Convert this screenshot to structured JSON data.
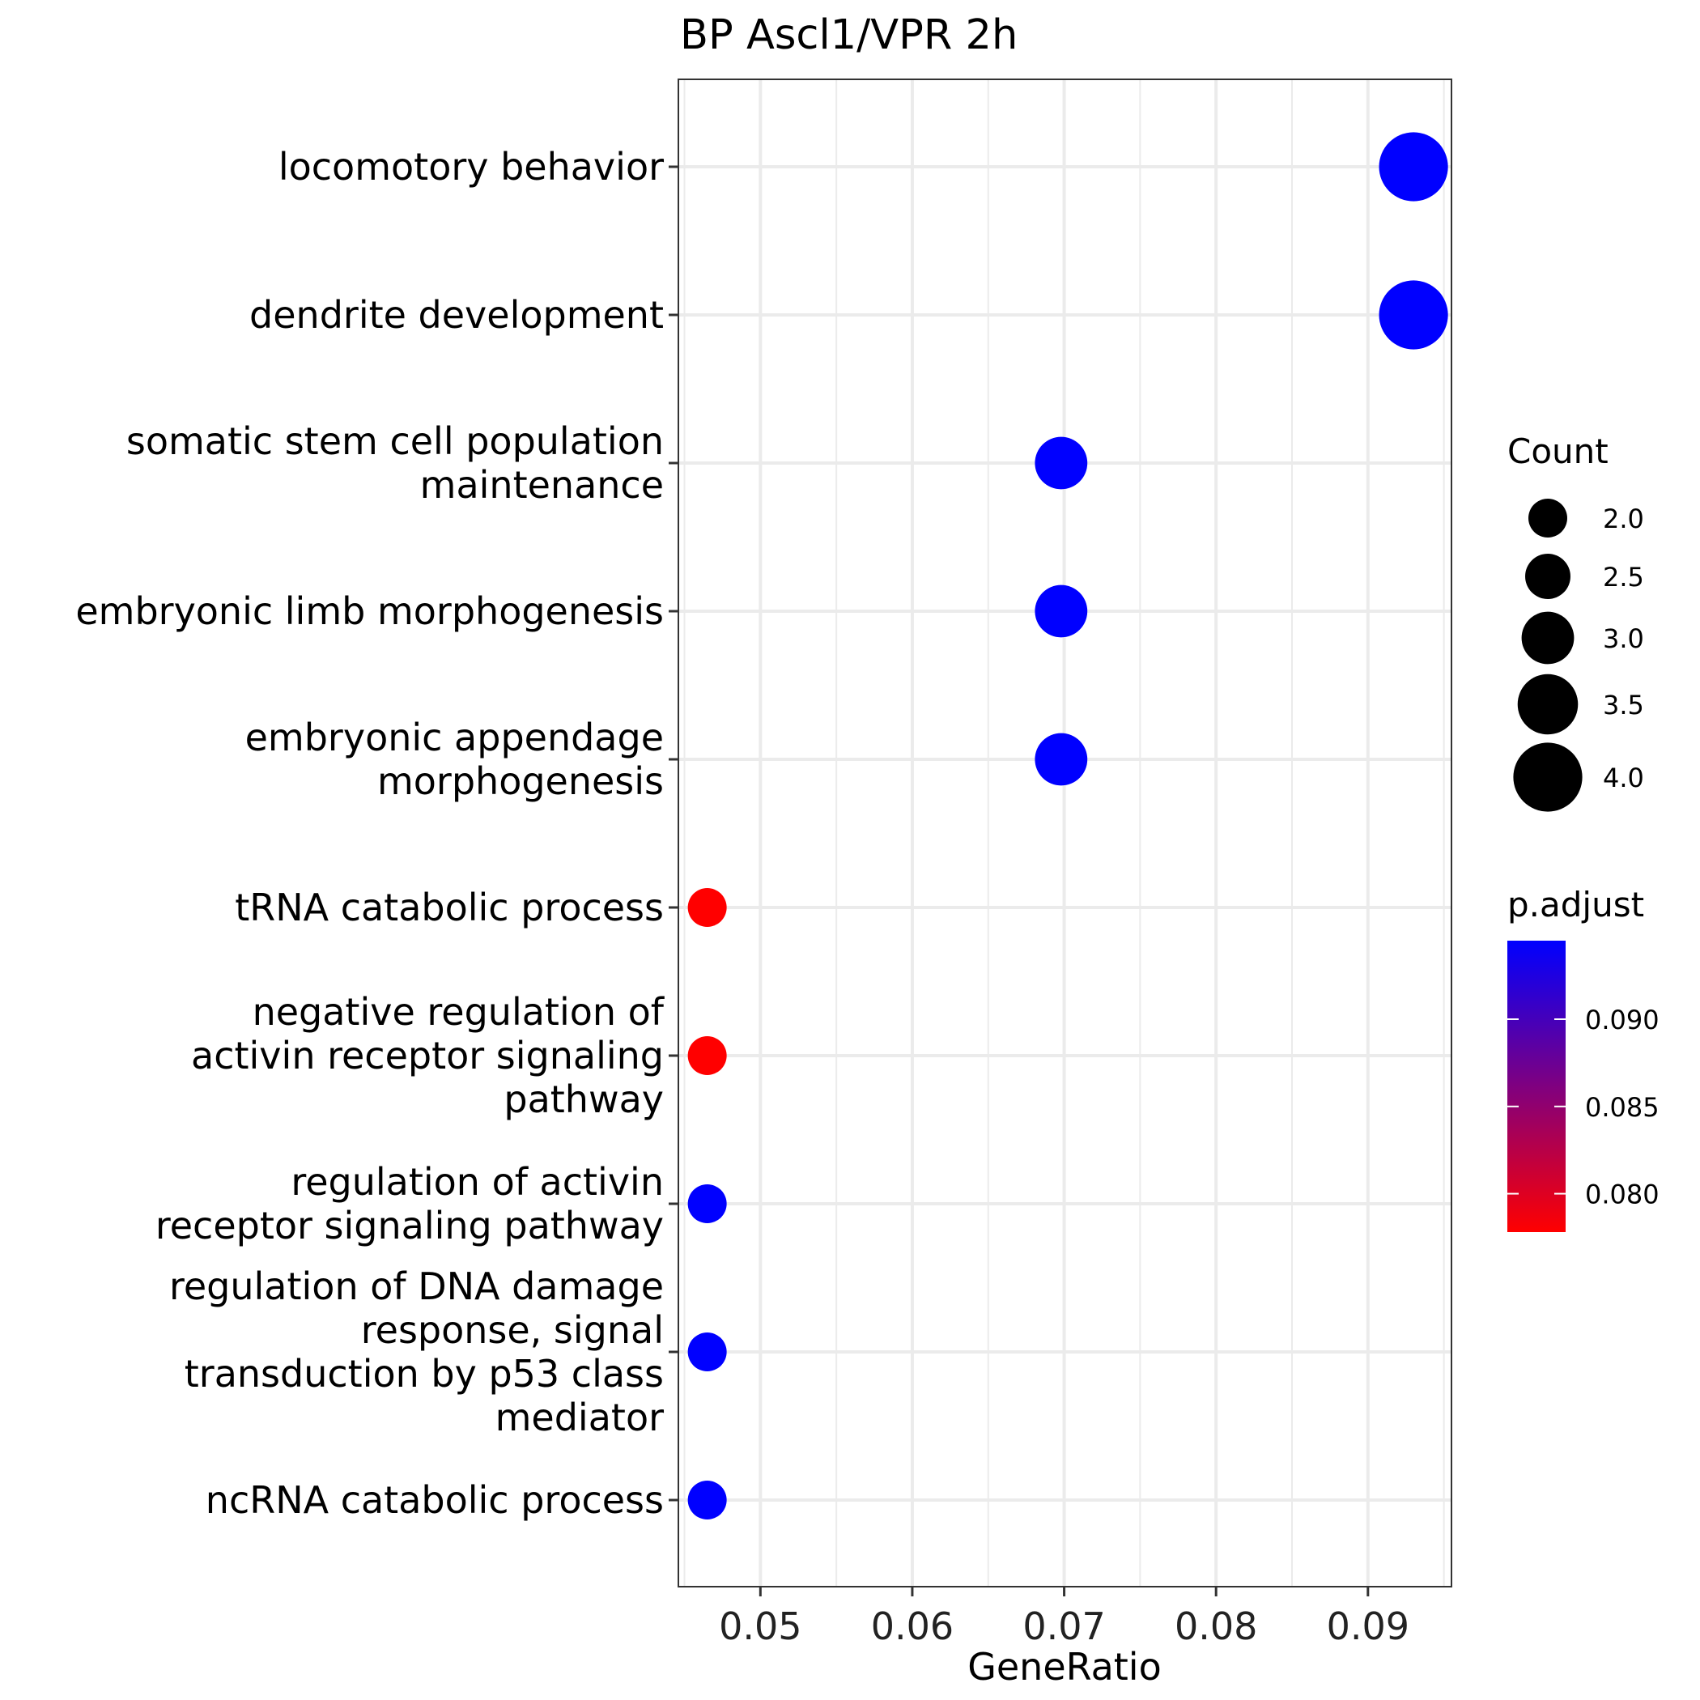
{
  "chart_data": {
    "type": "scatter",
    "title": "BP Ascl1/VPR 2h",
    "xlabel": "GeneRatio",
    "ylabel": "",
    "xlim": [
      0.0446,
      0.0955
    ],
    "x_ticks": [
      "0.05",
      "0.06",
      "0.07",
      "0.08",
      "0.09"
    ],
    "x_tick_values": [
      0.05,
      0.06,
      0.07,
      0.08,
      0.09
    ],
    "grid": true,
    "categories": [
      "locomotory behavior",
      "dendrite development",
      "somatic stem cell population maintenance",
      "embryonic limb morphogenesis",
      "embryonic appendage morphogenesis",
      "tRNA catabolic process",
      "negative regulation of activin receptor signaling pathway",
      "regulation of activin receptor signaling pathway",
      "regulation of DNA damage response, signal transduction by p53 class mediator",
      "ncRNA catabolic process"
    ],
    "category_label_lines": [
      [
        "locomotory behavior"
      ],
      [
        "dendrite development"
      ],
      [
        "somatic stem cell population",
        "maintenance"
      ],
      [
        "embryonic limb morphogenesis"
      ],
      [
        "embryonic appendage",
        "morphogenesis"
      ],
      [
        "tRNA catabolic process"
      ],
      [
        "negative regulation of",
        "activin receptor signaling",
        "pathway"
      ],
      [
        "regulation of activin",
        "receptor signaling pathway"
      ],
      [
        "regulation of DNA damage",
        "response, signal",
        "transduction by p53 class",
        "mediator"
      ],
      [
        "ncRNA catabolic process"
      ]
    ],
    "points": [
      {
        "category": "locomotory behavior",
        "gene_ratio": 0.093,
        "count": 4,
        "p_adjust": 0.0945
      },
      {
        "category": "dendrite development",
        "gene_ratio": 0.093,
        "count": 4,
        "p_adjust": 0.0945
      },
      {
        "category": "somatic stem cell population maintenance",
        "gene_ratio": 0.0698,
        "count": 3,
        "p_adjust": 0.0945
      },
      {
        "category": "embryonic limb morphogenesis",
        "gene_ratio": 0.0698,
        "count": 3,
        "p_adjust": 0.0945
      },
      {
        "category": "embryonic appendage morphogenesis",
        "gene_ratio": 0.0698,
        "count": 3,
        "p_adjust": 0.0945
      },
      {
        "category": "tRNA catabolic process",
        "gene_ratio": 0.0465,
        "count": 2,
        "p_adjust": 0.0778
      },
      {
        "category": "negative regulation of activin receptor signaling pathway",
        "gene_ratio": 0.0465,
        "count": 2,
        "p_adjust": 0.0778
      },
      {
        "category": "regulation of activin receptor signaling pathway",
        "gene_ratio": 0.0465,
        "count": 2,
        "p_adjust": 0.0945
      },
      {
        "category": "regulation of DNA damage response, signal transduction by p53 class mediator",
        "gene_ratio": 0.0465,
        "count": 2,
        "p_adjust": 0.0945
      },
      {
        "category": "ncRNA catabolic process",
        "gene_ratio": 0.0465,
        "count": 2,
        "p_adjust": 0.0945
      }
    ],
    "legend_size": {
      "title": "Count",
      "placement": "right",
      "values": [
        2.0,
        2.5,
        3.0,
        3.5,
        4.0
      ],
      "labels": [
        "2.0",
        "2.5",
        "3.0",
        "3.5",
        "4.0"
      ]
    },
    "legend_color": {
      "title": "p.adjust",
      "placement": "right",
      "range": [
        0.0778,
        0.0945
      ],
      "low_color": "#ff0000",
      "high_color": "#0000ff",
      "ticks": [
        0.08,
        0.085,
        0.09
      ],
      "tick_labels": [
        "0.080",
        "0.085",
        "0.090"
      ]
    },
    "colors": {
      "point_high": "#0000ff",
      "point_low": "#ff0000",
      "legend_size_fill": "#000000"
    }
  }
}
